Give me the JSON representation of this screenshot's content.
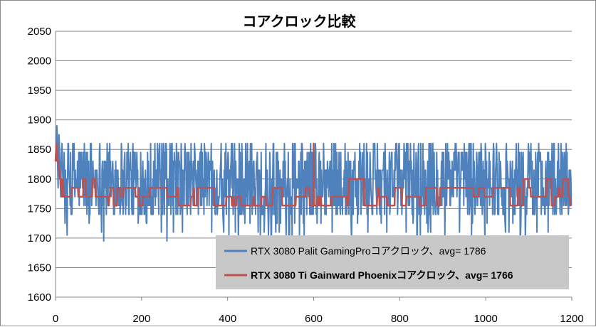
{
  "chart_data": {
    "type": "line",
    "title": "コアクロック比較",
    "xlabel": "",
    "ylabel": "",
    "xlim": [
      0,
      1200
    ],
    "ylim": [
      1600,
      2050
    ],
    "x_ticks": [
      "0",
      "200",
      "400",
      "600",
      "800",
      "1000",
      "1200"
    ],
    "y_ticks": [
      "1600",
      "1650",
      "1700",
      "1750",
      "1800",
      "1850",
      "1900",
      "1950",
      "2000",
      "2050"
    ],
    "grid": true,
    "legend_placement": "bottom-right",
    "series": [
      {
        "name": "RTX 3080 Palit GamingProコアクロック、avg= 1786",
        "color": "#4f81bd",
        "n_points": 1200,
        "min": 1695,
        "max": 1890,
        "avg": 1786,
        "start_values": [
          1830,
          1845,
          1860,
          1890,
          1875,
          1820,
          1785,
          1845,
          1875,
          1860,
          1830,
          1800,
          1770,
          1815,
          1845,
          1860,
          1830,
          1800,
          1770,
          1785,
          1845,
          1800
        ],
        "spike_at": [
          [
            3,
            1890
          ]
        ]
      },
      {
        "name": "RTX 3080 Ti Gainward Phoenixコアクロック、avg= 1766",
        "color": "#c0504d",
        "n_points": 1200,
        "min": 1750,
        "max": 1860,
        "avg": 1766,
        "start_values": [
          1830,
          1845,
          1860,
          1845,
          1830,
          1830,
          1830,
          1830,
          1815,
          1815,
          1800,
          1800,
          1785,
          1800,
          1785,
          1770,
          1785,
          1800,
          1785,
          1770
        ],
        "spike_at": [
          [
            600,
            1860
          ]
        ]
      }
    ]
  }
}
